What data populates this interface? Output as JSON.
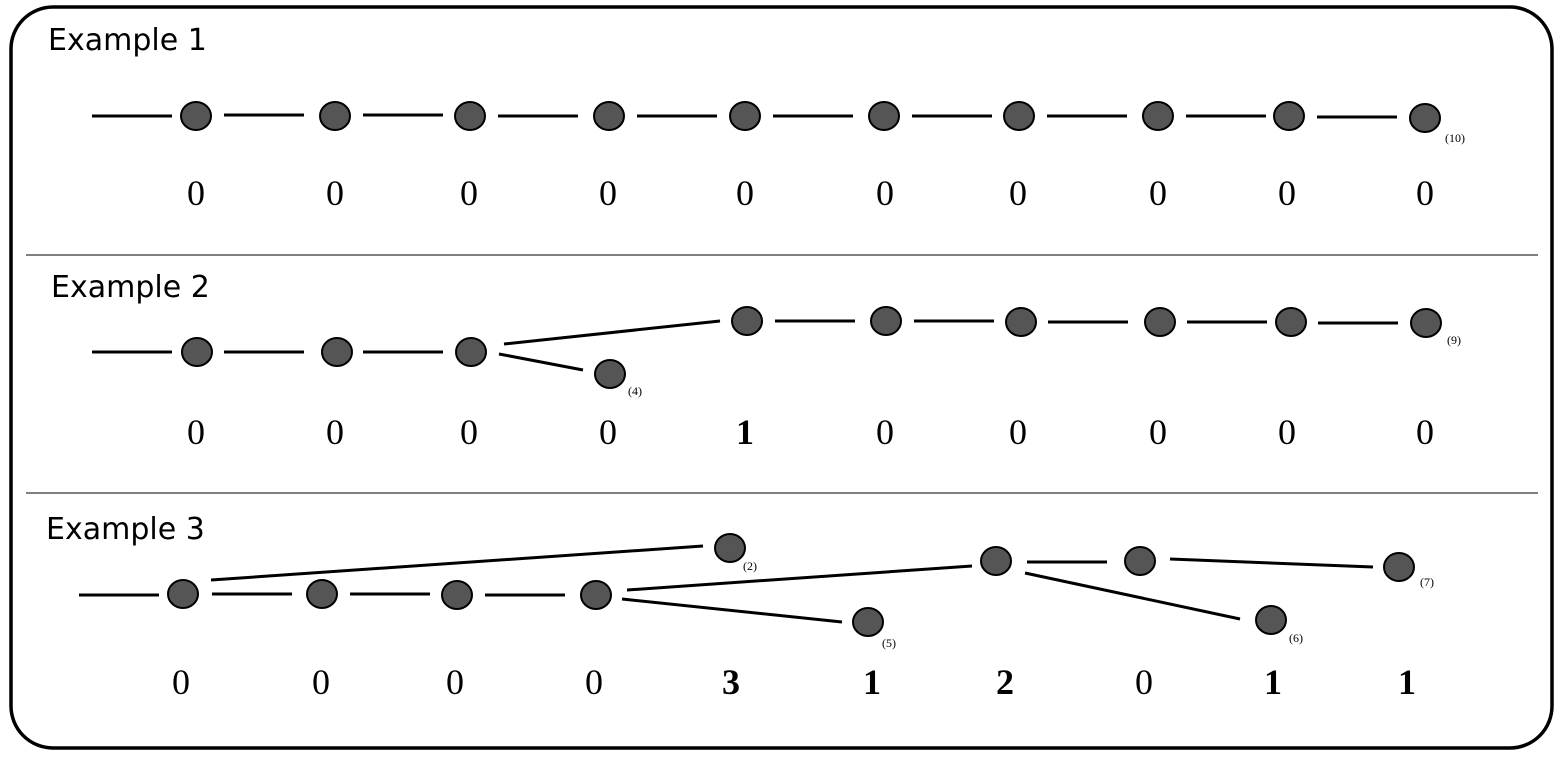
{
  "node_color": "#555555",
  "examples": [
    {
      "title": "Example 1",
      "values": [
        "0",
        "0",
        "0",
        "0",
        "0",
        "0",
        "0",
        "0",
        "0",
        "0"
      ],
      "highlighted": [
        false,
        false,
        false,
        false,
        false,
        false,
        false,
        false,
        false,
        false
      ],
      "node_labels": [
        "(10)"
      ]
    },
    {
      "title": "Example 2",
      "values": [
        "0",
        "0",
        "0",
        "0",
        "1",
        "0",
        "0",
        "0",
        "0",
        "0"
      ],
      "highlighted": [
        false,
        false,
        false,
        false,
        true,
        false,
        false,
        false,
        false,
        false
      ],
      "node_labels": [
        "(4)",
        "(9)"
      ]
    },
    {
      "title": "Example 3",
      "values": [
        "0",
        "0",
        "0",
        "0",
        "3",
        "1",
        "2",
        "0",
        "1",
        "1"
      ],
      "highlighted": [
        false,
        false,
        false,
        false,
        true,
        true,
        true,
        false,
        true,
        true
      ],
      "node_labels": [
        "(2)",
        "(5)",
        "(6)",
        "(7)"
      ]
    }
  ]
}
